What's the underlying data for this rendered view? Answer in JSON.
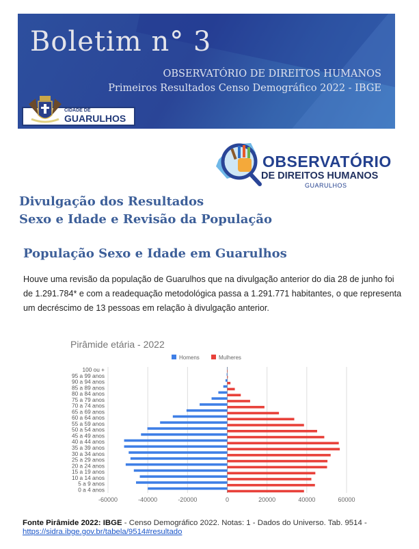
{
  "banner": {
    "title": "Boletim n° 3",
    "subtitle1": "OBSERVATÓRIO DE DIREITOS HUMANOS",
    "subtitle2": "Primeiros Resultados Censo Demográfico 2022 - IBGE",
    "city_logo_small": "CIDADE DE",
    "city_logo_big": "GUARULHOS"
  },
  "obs_logo": {
    "line1": "OBSERVATÓRIO",
    "line2": "DE DIREITOS HUMANOS",
    "line3": "GUARULHOS"
  },
  "heading": {
    "line1": "Divulgação dos Resultados",
    "line2": "Sexo e Idade e Revisão da População"
  },
  "section": {
    "title": "População Sexo e Idade em Guarulhos",
    "paragraph": "Houve uma revisão da população de Guarulhos que na divulgação anterior do dia 28 de junho foi de 1.291.784* e com a readequação metodológica passa a 1.291.771 habitantes, o que representa um decréscimo de 13 pessoas em relação à divulgação anterior."
  },
  "chart_data": {
    "type": "bar",
    "orientation": "horizontal",
    "title": "Pirâmide etária - 2022",
    "legend_position": "top",
    "categories": [
      "100 ou +",
      "95 a 99 anos",
      "90 a 94 anos",
      "85 a 89 anos",
      "80 a 84 anos",
      "75 a 79 anos",
      "70 a 74 anos",
      "65 a 69 anos",
      "60 a 64 anos",
      "55 a 59 anos",
      "50 a 54 anos",
      "45 a 49 anos",
      "40 a 44 anos",
      "35 a 39 anos",
      "30 a 34 anos",
      "25 a 29 anos",
      "20 a 24 anos",
      "15 a 19 anos",
      "10 a 14 anos",
      "5 a 9 anos",
      "0 a 4 anos"
    ],
    "series": [
      {
        "name": "Homens",
        "color": "#3f7fe6",
        "values": [
          -100,
          -300,
          -900,
          -2000,
          -4500,
          -7900,
          -13900,
          -20500,
          -27400,
          -33800,
          -40200,
          -43400,
          -51900,
          -51900,
          -49600,
          -48700,
          -51100,
          -47000,
          -44000,
          -45900,
          -40000
        ]
      },
      {
        "name": "Mulheres",
        "color": "#e8413a",
        "values": [
          200,
          300,
          1600,
          3800,
          6800,
          11500,
          18700,
          26000,
          33700,
          38600,
          45200,
          48800,
          56100,
          56600,
          52000,
          50400,
          50200,
          44300,
          42300,
          44100,
          38600
        ]
      }
    ],
    "xlim": [
      -60000,
      60000
    ],
    "xticks": [
      "-60000",
      "-40000",
      "-20000",
      "0",
      "20000",
      "40000",
      "60000"
    ],
    "xtick_values": [
      -60000,
      -40000,
      -20000,
      0,
      20000,
      40000,
      60000
    ],
    "grid": true
  },
  "source": {
    "bold": "Fonte Pirâmide 2022: IBGE",
    "text": " - Censo Demográfico 2022. Notas: 1 - Dados do Universo. Tab. 9514 -",
    "link": "https://sidra.ibge.gov.br/tabela/9514#resultado"
  }
}
